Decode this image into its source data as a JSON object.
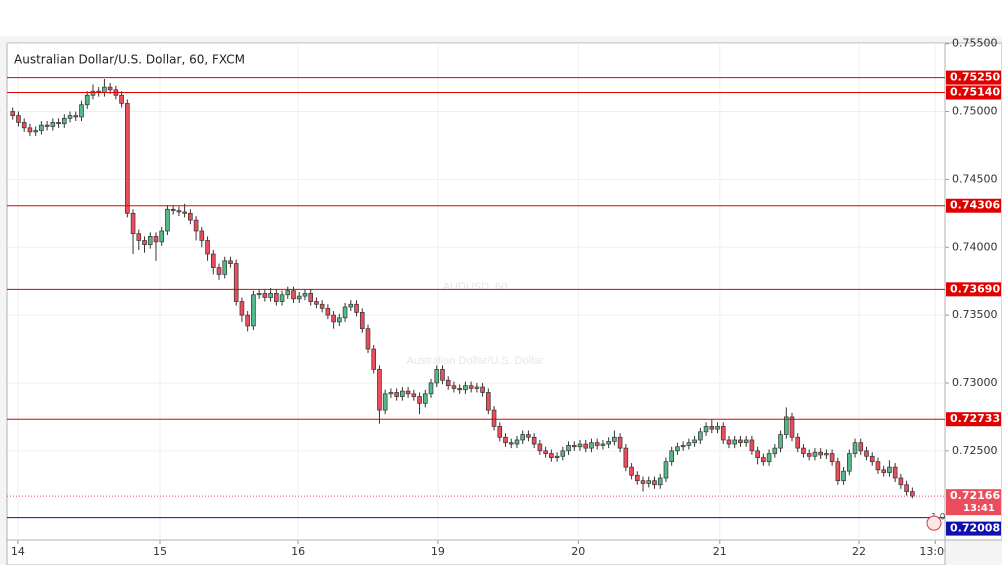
{
  "chart_data": {
    "type": "candlestick",
    "title": "Australian Dollar/U.S. Dollar, 60, FXCM",
    "watermark": "AUDUSD, 60",
    "watermark_subtitle": "Australian Dollar/U.S. Dollar",
    "up_color": "#53b987",
    "down_color": "#eb4d5c",
    "ylim": [
      0.71843,
      0.75505
    ],
    "yticks": [
      {
        "value": 0.755,
        "label": "0.75500"
      },
      {
        "value": 0.75,
        "label": "0.75000"
      },
      {
        "value": 0.745,
        "label": "0.74500"
      },
      {
        "value": 0.74,
        "label": "0.74000"
      },
      {
        "value": 0.735,
        "label": "0.73500"
      },
      {
        "value": 0.73,
        "label": "0.73000"
      },
      {
        "value": 0.725,
        "label": "0.72500"
      }
    ],
    "xlim": [
      -1,
      162.7
    ],
    "xticks": [
      {
        "value": 0.9,
        "label": "14"
      },
      {
        "value": 25.7,
        "label": "15"
      },
      {
        "value": 49.8,
        "label": "16"
      },
      {
        "value": 74.2,
        "label": "19"
      },
      {
        "value": 98.7,
        "label": "20"
      },
      {
        "value": 123.4,
        "label": "21"
      },
      {
        "value": 147.7,
        "label": "22"
      },
      {
        "value": 161.0,
        "label": "13:00"
      }
    ],
    "levels": [
      {
        "value": 0.7525,
        "label": "0.75250",
        "color": "#e00000"
      },
      {
        "value": 0.7514,
        "label": "0.75140",
        "color": "#e00000"
      },
      {
        "value": 0.74306,
        "label": "0.74306",
        "color": "#e00000"
      },
      {
        "value": 0.7369,
        "label": "0.73690",
        "color": "#e00000"
      },
      {
        "value": 0.72733,
        "label": "0.72733",
        "color": "#e00000"
      },
      {
        "value": 0.72008,
        "label": "0.72008",
        "color": "#1010b0"
      }
    ],
    "last_price": {
      "value": 0.72166,
      "label": "0.72166",
      "color": "#eb4d5c"
    },
    "countdown": "13:41",
    "scale_note": "1.0",
    "open": [
      0.75,
      0.7497,
      0.7492,
      0.7488,
      0.7485,
      0.7486,
      0.749,
      0.7489,
      0.7492,
      0.7491,
      0.7495,
      0.7497,
      0.7496,
      0.7505,
      0.7512,
      0.7515,
      0.7514,
      0.7518,
      0.7516,
      0.7512,
      0.7506,
      0.7425,
      0.741,
      0.7405,
      0.7402,
      0.7408,
      0.7404,
      0.7412,
      0.7428,
      0.7427,
      0.7426,
      0.7425,
      0.742,
      0.7412,
      0.7405,
      0.7395,
      0.7385,
      0.738,
      0.739,
      0.7388,
      0.736,
      0.735,
      0.7342,
      0.7365,
      0.7366,
      0.7363,
      0.7366,
      0.736,
      0.7365,
      0.7368,
      0.7362,
      0.7364,
      0.7366,
      0.736,
      0.7358,
      0.7355,
      0.735,
      0.7345,
      0.7348,
      0.7356,
      0.7358,
      0.7352,
      0.734,
      0.7325,
      0.731,
      0.728,
      0.7292,
      0.7293,
      0.729,
      0.7294,
      0.7292,
      0.729,
      0.7285,
      0.7292,
      0.73,
      0.731,
      0.7302,
      0.7298,
      0.7296,
      0.7295,
      0.7298,
      0.7296,
      0.7297,
      0.7293,
      0.728,
      0.7268,
      0.726,
      0.7256,
      0.7255,
      0.7258,
      0.7262,
      0.726,
      0.7255,
      0.725,
      0.7248,
      0.7245,
      0.7246,
      0.725,
      0.7254,
      0.7253,
      0.7255,
      0.7252,
      0.7256,
      0.7254,
      0.7255,
      0.7257,
      0.726,
      0.7252,
      0.7238,
      0.7232,
      0.7228,
      0.7226,
      0.7228,
      0.7225,
      0.723,
      0.7242,
      0.725,
      0.7253,
      0.7254,
      0.7256,
      0.7258,
      0.7264,
      0.7268,
      0.7266,
      0.7268,
      0.7258,
      0.7255,
      0.7258,
      0.7256,
      0.7258,
      0.725,
      0.7245,
      0.7242,
      0.7248,
      0.7252,
      0.7262,
      0.7275,
      0.726,
      0.7252,
      0.7248,
      0.7246,
      0.7249,
      0.7247,
      0.7248,
      0.7242,
      0.7228,
      0.7235,
      0.7248,
      0.7256,
      0.725,
      0.7246,
      0.7242,
      0.7236,
      0.7234,
      0.7238,
      0.723,
      0.7225,
      0.722
    ],
    "high": [
      0.7503,
      0.75,
      0.7495,
      0.7491,
      0.7489,
      0.7493,
      0.7493,
      0.7495,
      0.7495,
      0.7498,
      0.75,
      0.75,
      0.7508,
      0.7515,
      0.752,
      0.7518,
      0.7524,
      0.7521,
      0.7519,
      0.7515,
      0.7509,
      0.7428,
      0.7413,
      0.7408,
      0.7411,
      0.7411,
      0.7415,
      0.7431,
      0.7431,
      0.743,
      0.7432,
      0.7428,
      0.7423,
      0.7415,
      0.7408,
      0.7398,
      0.7388,
      0.7393,
      0.7393,
      0.7391,
      0.7363,
      0.7353,
      0.7368,
      0.7369,
      0.7369,
      0.737,
      0.7369,
      0.7368,
      0.7371,
      0.7371,
      0.7367,
      0.7369,
      0.7369,
      0.7363,
      0.7361,
      0.7358,
      0.7353,
      0.7351,
      0.7359,
      0.7361,
      0.7361,
      0.7355,
      0.7343,
      0.7328,
      0.7313,
      0.7295,
      0.7296,
      0.7296,
      0.7297,
      0.7297,
      0.7295,
      0.7293,
      0.7295,
      0.7303,
      0.7313,
      0.7313,
      0.7305,
      0.7301,
      0.7299,
      0.7301,
      0.7301,
      0.73,
      0.73,
      0.7296,
      0.7283,
      0.7271,
      0.7263,
      0.7259,
      0.7261,
      0.7265,
      0.7265,
      0.7263,
      0.7258,
      0.7253,
      0.7251,
      0.7249,
      0.7253,
      0.7257,
      0.7257,
      0.7258,
      0.7258,
      0.7259,
      0.7259,
      0.7258,
      0.726,
      0.7265,
      0.7263,
      0.7255,
      0.7241,
      0.7235,
      0.7231,
      0.7231,
      0.7231,
      0.7233,
      0.7245,
      0.7253,
      0.7256,
      0.7257,
      0.7259,
      0.7261,
      0.7267,
      0.7271,
      0.7273,
      0.7271,
      0.7271,
      0.7261,
      0.7261,
      0.7261,
      0.7261,
      0.7261,
      0.7253,
      0.7248,
      0.7251,
      0.7255,
      0.7265,
      0.7282,
      0.7278,
      0.7263,
      0.7255,
      0.7251,
      0.7252,
      0.7252,
      0.7251,
      0.7251,
      0.7245,
      0.7238,
      0.7251,
      0.7259,
      0.7259,
      0.7253,
      0.7249,
      0.7245,
      0.7239,
      0.7243,
      0.7241,
      0.7233,
      0.7228,
      0.7223
    ],
    "low": [
      0.7494,
      0.7489,
      0.7485,
      0.7482,
      0.7482,
      0.7483,
      0.7486,
      0.7486,
      0.7488,
      0.7488,
      0.7492,
      0.7493,
      0.7493,
      0.7502,
      0.7509,
      0.7511,
      0.7511,
      0.7513,
      0.7509,
      0.7503,
      0.7422,
      0.7395,
      0.7398,
      0.7396,
      0.7399,
      0.739,
      0.7401,
      0.7409,
      0.7424,
      0.7423,
      0.7422,
      0.7417,
      0.7405,
      0.74,
      0.739,
      0.738,
      0.7376,
      0.7377,
      0.7385,
      0.7357,
      0.7345,
      0.7338,
      0.7339,
      0.7362,
      0.736,
      0.736,
      0.7357,
      0.7357,
      0.7362,
      0.7359,
      0.7359,
      0.7361,
      0.7357,
      0.7355,
      0.7352,
      0.7347,
      0.734,
      0.7342,
      0.7345,
      0.7353,
      0.7349,
      0.7337,
      0.7322,
      0.7307,
      0.727,
      0.7277,
      0.7289,
      0.7287,
      0.7287,
      0.7289,
      0.7287,
      0.7277,
      0.7282,
      0.7289,
      0.7297,
      0.7299,
      0.7295,
      0.7293,
      0.7292,
      0.7292,
      0.7293,
      0.7293,
      0.729,
      0.7277,
      0.7265,
      0.7257,
      0.7253,
      0.7252,
      0.7252,
      0.7255,
      0.7257,
      0.7252,
      0.7247,
      0.7245,
      0.7242,
      0.7242,
      0.7243,
      0.7247,
      0.725,
      0.725,
      0.7249,
      0.7249,
      0.7251,
      0.7251,
      0.7252,
      0.7254,
      0.7249,
      0.7235,
      0.7229,
      0.7225,
      0.722,
      0.7223,
      0.7222,
      0.7222,
      0.7227,
      0.7239,
      0.7247,
      0.725,
      0.7251,
      0.7253,
      0.7255,
      0.7261,
      0.7263,
      0.7263,
      0.7255,
      0.7252,
      0.7252,
      0.7253,
      0.7253,
      0.7247,
      0.724,
      0.7239,
      0.7239,
      0.7245,
      0.7249,
      0.7259,
      0.7257,
      0.7249,
      0.7245,
      0.7243,
      0.7243,
      0.7244,
      0.7244,
      0.7239,
      0.7225,
      0.7225,
      0.7232,
      0.7245,
      0.7247,
      0.7243,
      0.7239,
      0.7233,
      0.7231,
      0.7231,
      0.7227,
      0.7222,
      0.7217,
      0.7215
    ],
    "close": [
      0.7497,
      0.7492,
      0.7488,
      0.7485,
      0.7486,
      0.749,
      0.7489,
      0.7492,
      0.7491,
      0.7495,
      0.7497,
      0.7496,
      0.7505,
      0.7512,
      0.7515,
      0.7514,
      0.7518,
      0.7516,
      0.7512,
      0.7506,
      0.7425,
      0.741,
      0.7405,
      0.7402,
      0.7408,
      0.7404,
      0.7412,
      0.7428,
      0.7427,
      0.7426,
      0.7425,
      0.742,
      0.7412,
      0.7405,
      0.7395,
      0.7385,
      0.738,
      0.739,
      0.7388,
      0.736,
      0.735,
      0.7342,
      0.7365,
      0.7366,
      0.7363,
      0.7366,
      0.736,
      0.7365,
      0.7368,
      0.7362,
      0.7364,
      0.7366,
      0.736,
      0.7358,
      0.7355,
      0.735,
      0.7345,
      0.7348,
      0.7356,
      0.7358,
      0.7352,
      0.734,
      0.7325,
      0.731,
      0.728,
      0.7292,
      0.7293,
      0.729,
      0.7294,
      0.7292,
      0.729,
      0.7285,
      0.7292,
      0.73,
      0.731,
      0.7302,
      0.7298,
      0.7296,
      0.7295,
      0.7298,
      0.7296,
      0.7297,
      0.7293,
      0.728,
      0.7268,
      0.726,
      0.7256,
      0.7255,
      0.7258,
      0.7262,
      0.726,
      0.7255,
      0.725,
      0.7248,
      0.7245,
      0.7246,
      0.725,
      0.7254,
      0.7253,
      0.7255,
      0.7252,
      0.7256,
      0.7254,
      0.7255,
      0.7257,
      0.726,
      0.7252,
      0.7238,
      0.7232,
      0.7228,
      0.7226,
      0.7228,
      0.7225,
      0.723,
      0.7242,
      0.725,
      0.7253,
      0.7254,
      0.7256,
      0.7258,
      0.7264,
      0.7268,
      0.7266,
      0.7268,
      0.7258,
      0.7255,
      0.7258,
      0.7256,
      0.7258,
      0.725,
      0.7245,
      0.7242,
      0.7248,
      0.7252,
      0.7262,
      0.7275,
      0.726,
      0.7252,
      0.7248,
      0.7246,
      0.7249,
      0.7247,
      0.7248,
      0.7242,
      0.7228,
      0.7235,
      0.7248,
      0.7256,
      0.725,
      0.7246,
      0.7242,
      0.7236,
      0.7234,
      0.7238,
      0.723,
      0.7225,
      0.722,
      0.72166
    ]
  }
}
